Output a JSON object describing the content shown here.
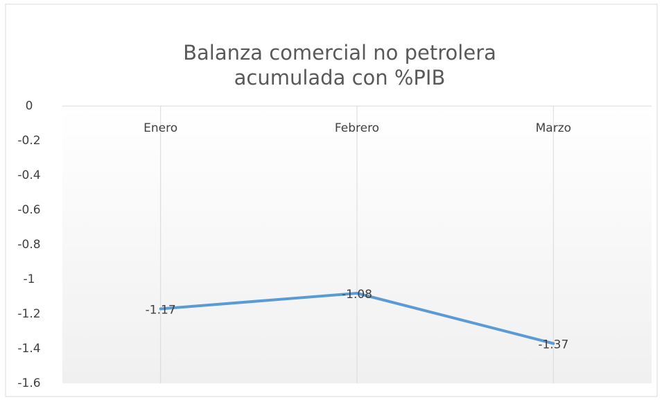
{
  "chart_data": {
    "type": "line",
    "title": "Balanza comercial no petrolera acumulada con %PIB",
    "categories": [
      "Enero",
      "Febrero",
      "Marzo"
    ],
    "series": [
      {
        "name": "Balanza comercial no petrolera acumulada con %PIB",
        "color": "#5b9bd5",
        "values": [
          -1.17,
          -1.08,
          -1.37
        ]
      }
    ],
    "ylim": [
      -1.6,
      0
    ],
    "yticks": [
      0,
      -0.2,
      -0.4,
      -0.6,
      -0.8,
      -1,
      -1.2,
      -1.4,
      -1.6
    ],
    "grid": true
  }
}
